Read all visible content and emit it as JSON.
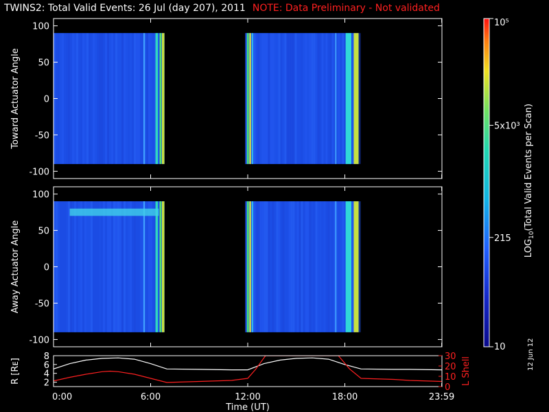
{
  "header": {
    "title": "TWINS2: Total Valid Events: 26 Jul (day 207), 2011",
    "note": "NOTE: Data Preliminary - Not validated"
  },
  "date_stamp": "12 Jun 12",
  "colors": {
    "note": "#ff2020",
    "rshell": "#ffffff",
    "lshell": "#ff2020"
  },
  "chart_data": [
    {
      "type": "heatmap",
      "ylabel": "Toward Actuator Angle",
      "ylim": [
        -110,
        110
      ],
      "yticks": [
        -100,
        -50,
        0,
        50,
        100
      ],
      "xlim": [
        0,
        24
      ],
      "y_extent": [
        -90,
        90
      ],
      "data_intervals": [
        [
          0,
          6.85
        ],
        [
          11.85,
          18.85
        ]
      ]
    },
    {
      "type": "heatmap",
      "ylabel": "Away Actuator Angle",
      "ylim": [
        -110,
        110
      ],
      "yticks": [
        -100,
        -50,
        0,
        50,
        100
      ],
      "xlim": [
        0,
        24
      ],
      "y_extent": [
        -90,
        90
      ],
      "data_intervals": [
        [
          0,
          6.85
        ],
        [
          11.85,
          18.85
        ]
      ]
    },
    {
      "type": "line",
      "xlabel": "Time (UT)",
      "xlim": [
        0,
        24
      ],
      "xticks": [
        "0:00",
        "6:00",
        "12:00",
        "18:00",
        "23:59"
      ],
      "xtick_values": [
        0,
        6,
        12,
        18,
        23.983
      ],
      "ylabel_left": "R [Rᴇ]",
      "ylim_left": [
        1,
        8
      ],
      "yticks_left": [
        2,
        4,
        6,
        8
      ],
      "ylabel_right": "L Shell",
      "ylim_right": [
        0,
        30
      ],
      "yticks_right": [
        0,
        10,
        20,
        30
      ],
      "series": [
        {
          "name": "R [Rᴇ]",
          "axis": "left",
          "x": [
            0,
            1,
            2,
            3,
            4,
            5,
            6,
            7,
            9,
            11,
            12,
            13,
            14,
            15,
            16,
            17,
            18,
            19,
            21,
            22,
            24
          ],
          "y": [
            5.0,
            6.2,
            7.0,
            7.4,
            7.5,
            7.2,
            6.2,
            5.0,
            4.9,
            4.8,
            4.8,
            6.2,
            7.0,
            7.4,
            7.5,
            7.2,
            6.0,
            5.0,
            4.9,
            4.9,
            4.8
          ]
        },
        {
          "name": "L Shell",
          "axis": "right",
          "x": [
            0,
            1,
            2,
            3,
            3.5,
            4,
            5,
            6,
            7,
            9,
            11,
            12,
            12.5,
            13.1,
            17.6,
            18.3,
            19,
            21,
            22,
            24
          ],
          "y": [
            5.5,
            9,
            12,
            14.5,
            15,
            14.5,
            12,
            8,
            4,
            5,
            6,
            8,
            17,
            30,
            30,
            17,
            8,
            7,
            6,
            5
          ]
        }
      ]
    }
  ],
  "colorbar": {
    "label": "LOG10(Total Valid Events per Scan)",
    "min": 10,
    "max": 100000,
    "scale": "log",
    "tick_labels": [
      "10",
      "215",
      "5x10³",
      "10⁵"
    ],
    "tick_values": [
      10,
      215,
      5000,
      100000
    ]
  }
}
